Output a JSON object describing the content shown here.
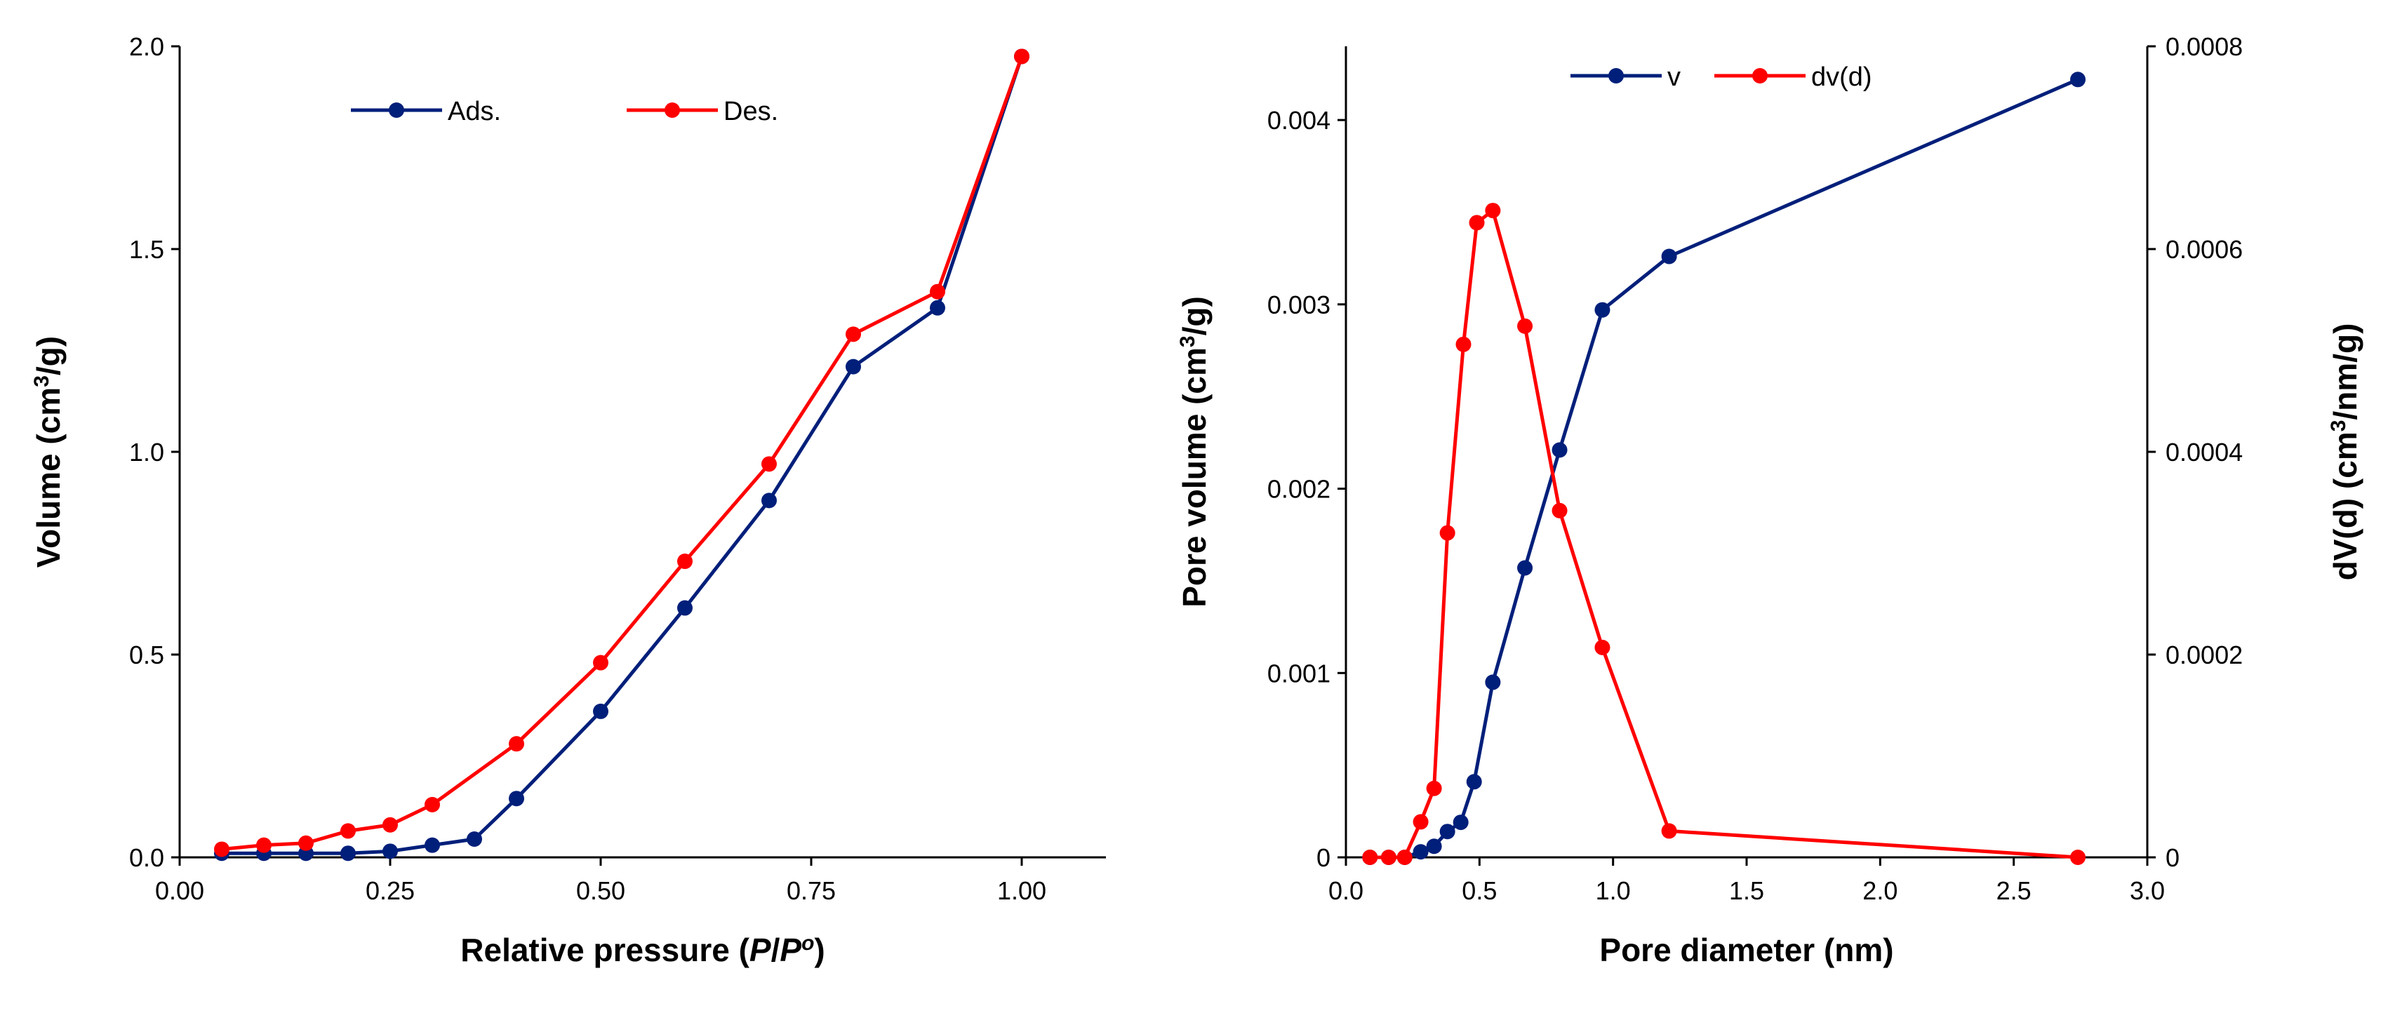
{
  "chart_data": [
    {
      "type": "line",
      "title": "",
      "xlabel": "Relative pressure (P/Po)",
      "ylabel": "Volume (cm3/g)",
      "xlim": [
        0.0,
        1.1
      ],
      "ylim": [
        0.0,
        2.0
      ],
      "x_ticks": [
        "0.00",
        "0.25",
        "0.50",
        "0.75",
        "1.00"
      ],
      "y_ticks": [
        "0.0",
        "0.5",
        "1.0",
        "1.5",
        "2.0"
      ],
      "legend": [
        "Ads.",
        "Des."
      ],
      "series": [
        {
          "name": "Ads.",
          "color": "#001f7a",
          "x": [
            0.05,
            0.1,
            0.15,
            0.2,
            0.25,
            0.3,
            0.35,
            0.4,
            0.5,
            0.6,
            0.7,
            0.8,
            0.9,
            1.0
          ],
          "y": [
            0.01,
            0.01,
            0.01,
            0.01,
            0.015,
            0.03,
            0.045,
            0.145,
            0.36,
            0.615,
            0.88,
            1.21,
            1.355,
            1.975
          ]
        },
        {
          "name": "Des.",
          "color": "#ff0000",
          "x": [
            0.05,
            0.1,
            0.15,
            0.2,
            0.25,
            0.3,
            0.4,
            0.5,
            0.6,
            0.7,
            0.8,
            0.9,
            1.0
          ],
          "y": [
            0.02,
            0.03,
            0.035,
            0.065,
            0.08,
            0.13,
            0.28,
            0.48,
            0.73,
            0.97,
            1.29,
            1.395,
            1.975
          ]
        }
      ]
    },
    {
      "type": "line",
      "title": "",
      "xlabel": "Pore diameter (nm)",
      "ylabel": "Pore volume (cm3/g)",
      "y2label": "dV(d) (cm3/nm/g)",
      "xlim": [
        0.0,
        3.0
      ],
      "ylim": [
        0.0,
        0.0044
      ],
      "y2lim": [
        0.0,
        0.0008
      ],
      "x_ticks": [
        "0.0",
        "0.5",
        "1.0",
        "1.5",
        "2.0",
        "2.5",
        "3.0"
      ],
      "y_ticks": [
        "0",
        "0.001",
        "0.002",
        "0.003",
        "0.004"
      ],
      "y2_ticks": [
        "0",
        "0.0002",
        "0.0004",
        "0.0006",
        "0.0008"
      ],
      "legend": [
        "v",
        "dv(d)"
      ],
      "series": [
        {
          "name": "v",
          "axis": "left",
          "color": "#001f7a",
          "x": [
            0.09,
            0.16,
            0.22,
            0.28,
            0.33,
            0.38,
            0.43,
            0.48,
            0.55,
            0.67,
            0.8,
            0.96,
            1.21,
            2.74
          ],
          "y": [
            0.0,
            0.0,
            0.0,
            3e-05,
            6e-05,
            0.00014,
            0.00019,
            0.00041,
            0.00095,
            0.00157,
            0.00221,
            0.00297,
            0.00326,
            0.00422
          ]
        },
        {
          "name": "dv(d)",
          "axis": "right",
          "color": "#ff0000",
          "x": [
            0.09,
            0.16,
            0.22,
            0.28,
            0.33,
            0.38,
            0.44,
            0.49,
            0.55,
            0.67,
            0.8,
            0.96,
            1.21,
            2.74
          ],
          "y": [
            0.0,
            0.0,
            0.0,
            3.5e-05,
            6.8e-05,
            0.00032,
            0.000506,
            0.000626,
            0.000638,
            0.000524,
            0.000342,
            0.000207,
            2.6e-05,
            0.0
          ]
        }
      ]
    }
  ]
}
